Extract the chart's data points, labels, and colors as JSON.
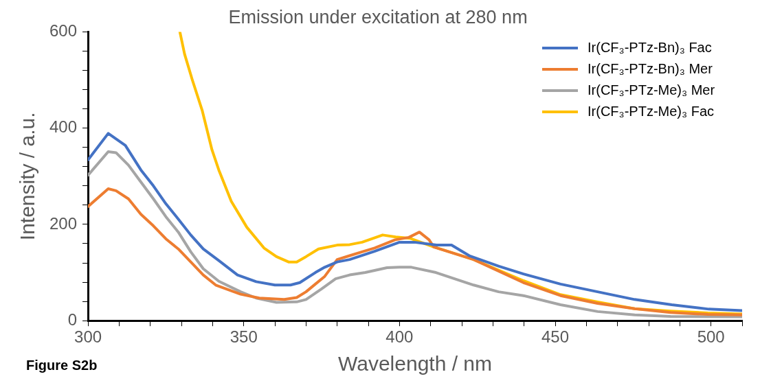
{
  "chart_data": {
    "type": "line",
    "title": "Emission under excitation at 280 nm",
    "xlabel": "Wavelength / nm",
    "ylabel": "Intensity / a.u.",
    "annotations": [
      "Figure S2b"
    ],
    "xlim": [
      300,
      510
    ],
    "xticks": [
      300,
      {
        "value": 310,
        "label": null
      },
      {
        "value": 320,
        "label": null
      },
      {
        "value": 330,
        "label": null
      },
      {
        "value": 340,
        "label": null
      },
      350,
      {
        "value": 360,
        "label": null
      },
      {
        "value": 370,
        "label": null
      },
      {
        "value": 380,
        "label": null
      },
      {
        "value": 390,
        "label": null
      },
      400,
      {
        "value": 410,
        "label": null
      },
      {
        "value": 420,
        "label": null
      },
      {
        "value": 430,
        "label": null
      },
      {
        "value": 440,
        "label": null
      },
      450,
      {
        "value": 460,
        "label": null
      },
      {
        "value": 470,
        "label": null
      },
      {
        "value": 480,
        "label": null
      },
      {
        "value": 490,
        "label": null
      },
      500,
      {
        "value": 510,
        "label": null
      }
    ],
    "ylim": [
      0,
      600
    ],
    "yticks": [
      0,
      {
        "value": 40,
        "label": null
      },
      {
        "value": 80,
        "label": null
      },
      {
        "value": 120,
        "label": null
      },
      {
        "value": 160,
        "label": null
      },
      200,
      {
        "value": 240,
        "label": null
      },
      {
        "value": 280,
        "label": null
      },
      {
        "value": 320,
        "label": null
      },
      {
        "value": 360,
        "label": null
      },
      400,
      {
        "value": 440,
        "label": null
      },
      {
        "value": 480,
        "label": null
      },
      {
        "value": 520,
        "label": null
      },
      {
        "value": 560,
        "label": null
      },
      600
    ],
    "grid": false,
    "legend": "top right",
    "marker": "none",
    "line_style": "solid",
    "series": [
      {
        "name": "Ir(CF₃-PTz-Bn)₃ Fac",
        "color": "#4472c4",
        "x": [
          300,
          306.5,
          312,
          317,
          321,
          325,
          329,
          333,
          337,
          342,
          348,
          354,
          360,
          365,
          368,
          373,
          376,
          380,
          384,
          392,
          400,
          404.8,
          411.9,
          416.7,
          422.4,
          431.9,
          439.8,
          451.7,
          463.6,
          475.5,
          487.4,
          499.3,
          510
        ],
        "values": [
          334,
          389,
          364,
          313,
          280,
          243,
          211,
          178,
          149,
          125,
          95,
          81,
          74,
          74,
          79,
          100,
          111,
          122,
          127,
          144,
          163,
          163,
          157,
          157,
          135,
          113,
          97,
          76,
          60,
          44,
          33,
          24,
          21
        ]
      },
      {
        "name": "Ir(CF₃-PTz-Bn)₃ Mer",
        "color": "#ed7d31",
        "x": [
          300,
          306.5,
          309,
          313,
          317,
          321,
          325,
          329,
          333,
          337,
          341,
          349,
          355,
          363,
          367,
          370,
          373,
          376,
          380,
          384,
          388,
          392,
          398.6,
          403,
          406.4,
          409.5,
          411,
          423.8,
          439.8,
          451.7,
          463.6,
          475.5,
          487,
          499,
          510
        ],
        "values": [
          237,
          274,
          270,
          253,
          221,
          197,
          170,
          149,
          122,
          95,
          74,
          55,
          47,
          44,
          48,
          60,
          76,
          92,
          127,
          135,
          143,
          151,
          168,
          173,
          184,
          168,
          153,
          127,
          79,
          52,
          36,
          25,
          17,
          13,
          12
        ]
      },
      {
        "name": "Ir(CF₃-PTz-Me)₃ Mer",
        "color": "#a5a5a5",
        "x": [
          300,
          306.5,
          309,
          313,
          317,
          321,
          325,
          329,
          333,
          337,
          342,
          349,
          354,
          360.5,
          367,
          370,
          375,
          379.5,
          384,
          389,
          396,
          400,
          403.8,
          411.7,
          423.8,
          431.8,
          439.8,
          451.7,
          463.6,
          475.5,
          487,
          510
        ],
        "values": [
          302,
          351,
          349,
          323,
          288,
          253,
          216,
          184,
          143,
          108,
          82,
          60,
          47,
          38,
          39,
          44,
          66,
          87,
          95,
          100,
          110,
          111,
          111,
          100,
          74,
          60,
          52,
          33,
          19,
          12,
          9,
          8
        ]
      },
      {
        "name": "Ir(CF₃-PTz-Me)₃ Fac",
        "color": "#ffc000",
        "x": [
          329.5,
          331,
          333.5,
          336.7,
          339.8,
          342,
          346,
          351,
          356.5,
          360.5,
          364.4,
          367,
          370,
          374,
          380,
          384,
          388,
          394.6,
          398.8,
          403.5,
          410.6,
          423.8,
          439.8,
          451.7,
          463.6,
          475.5,
          487,
          499,
          510
        ],
        "values": [
          600,
          554,
          500,
          436,
          355,
          313,
          248,
          194,
          151,
          133,
          122,
          122,
          133,
          149,
          157,
          158,
          163,
          178,
          174,
          171,
          154,
          127,
          83,
          54,
          39,
          25,
          20,
          16,
          14
        ]
      }
    ]
  }
}
